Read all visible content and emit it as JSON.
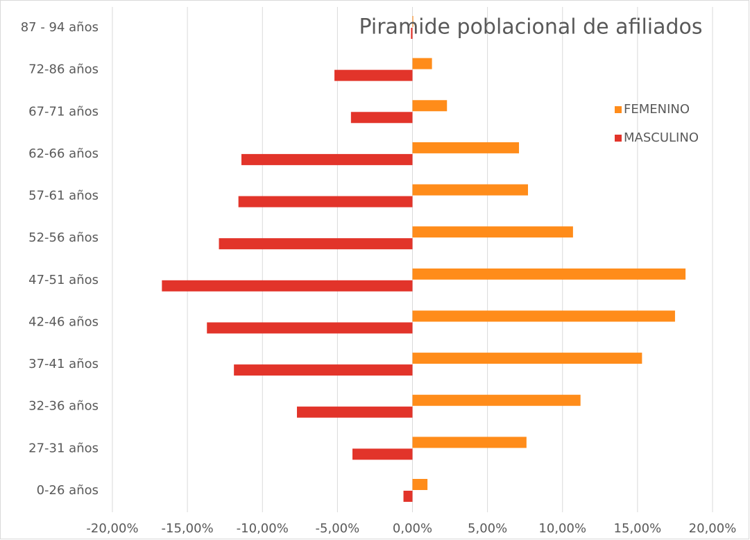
{
  "chart_data": {
    "type": "hbar",
    "title": "Piramide poblacional de afiliados",
    "categories": [
      "87 - 94 años",
      "72-86 años",
      "67-71 años",
      "62-66 años",
      "57-61 años",
      "52-56 años",
      "47-51 años",
      "42-46 años",
      "37-41 años",
      "32-36 años",
      "27-31 años",
      "0-26 años"
    ],
    "series": [
      {
        "name": "FEMENINO",
        "color": "#ff8c1a",
        "values": [
          0.05,
          1.3,
          2.3,
          7.1,
          7.7,
          10.7,
          18.2,
          17.5,
          15.3,
          11.2,
          7.6,
          1.0
        ]
      },
      {
        "name": "MASCULINO",
        "color": "#e2342a",
        "values": [
          -0.1,
          -5.2,
          -4.1,
          -11.4,
          -11.6,
          -12.9,
          -16.7,
          -13.7,
          -11.9,
          -7.7,
          -4.0,
          -0.6
        ]
      }
    ],
    "xlim": [
      -20,
      20
    ],
    "xticks": [
      {
        "value": -20,
        "label": "-20,00%"
      },
      {
        "value": -15,
        "label": "-15,00%"
      },
      {
        "value": -10,
        "label": "-10,00%"
      },
      {
        "value": -5,
        "label": "-5,00%"
      },
      {
        "value": 0,
        "label": "0,00%"
      },
      {
        "value": 5,
        "label": "5,00%"
      },
      {
        "value": 10,
        "label": "10,00%"
      },
      {
        "value": 15,
        "label": "15,00%"
      },
      {
        "value": 20,
        "label": "20,00%"
      }
    ],
    "grid": true,
    "legend": "right"
  }
}
